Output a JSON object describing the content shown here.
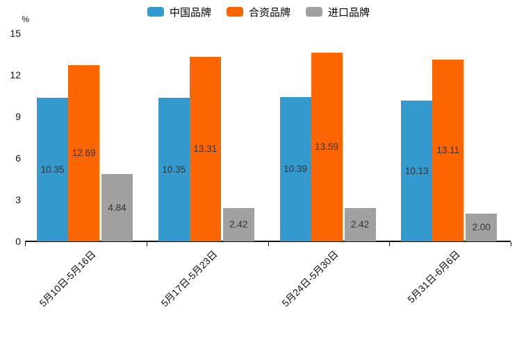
{
  "chart_data": {
    "type": "bar",
    "title": "",
    "ylabel": "%",
    "ylim": [
      0,
      15
    ],
    "yticks": [
      0,
      3,
      6,
      9,
      12,
      15
    ],
    "grid": false,
    "legend_position": "top-center",
    "value_label_format": "2-decimals",
    "categories": [
      "5月10日-5月16日",
      "5月17日-5月23日",
      "5月24日-5月30日",
      "5月31日-6月6日"
    ],
    "series": [
      {
        "name": "中国品牌",
        "color": "#3499cd",
        "values": [
          10.35,
          10.35,
          10.39,
          10.13
        ]
      },
      {
        "name": "合资品牌",
        "color": "#fc6500",
        "values": [
          12.69,
          13.31,
          13.59,
          13.11
        ]
      },
      {
        "name": "进口品牌",
        "color": "#a0a0a0",
        "values": [
          4.84,
          2.42,
          2.42,
          2.0
        ]
      }
    ],
    "colors": {
      "value_label": "#333333",
      "axis": "#111111",
      "background": "#ffffff"
    }
  }
}
